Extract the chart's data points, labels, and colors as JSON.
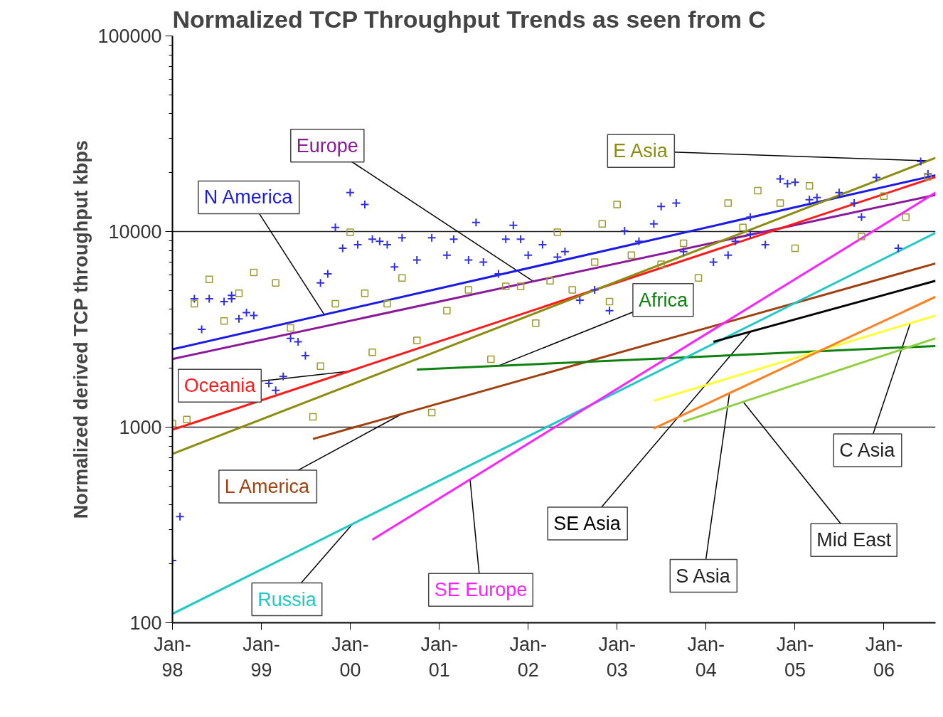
{
  "chart_data": {
    "type": "line",
    "title": "Normalized TCP Throughput Trends as seen from C",
    "ylabel": "Normalized derived TCP throughput kbps",
    "log": "y",
    "grid": "y",
    "xlim": [
      "1998-01",
      "2006-08"
    ],
    "ylim": [
      100,
      100000
    ],
    "xticks": [
      {
        "value": "1998-01",
        "label": "Jan-\n98"
      },
      {
        "value": "1999-01",
        "label": "Jan-\n99"
      },
      {
        "value": "2000-01",
        "label": "Jan-\n00"
      },
      {
        "value": "2001-01",
        "label": "Jan-\n01"
      },
      {
        "value": "2002-01",
        "label": "Jan-\n02"
      },
      {
        "value": "2003-01",
        "label": "Jan-\n03"
      },
      {
        "value": "2004-01",
        "label": "Jan-\n04"
      },
      {
        "value": "2005-01",
        "label": "Jan-\n05"
      },
      {
        "value": "2006-01",
        "label": "Jan-\n06"
      }
    ],
    "yticks": [
      100,
      1000,
      10000,
      100000
    ],
    "series": [
      {
        "name": "N America",
        "color": "#1a1ae6",
        "x": [
          "1998-01",
          "2006-08"
        ],
        "values": [
          2500,
          19400
        ]
      },
      {
        "name": "Europe",
        "color": "#8a1a9a",
        "x": [
          "1998-01",
          "2006-08"
        ],
        "values": [
          2230,
          15400
        ]
      },
      {
        "name": "Oceania",
        "color": "#ff1a1a",
        "x": [
          "1998-01",
          "2006-08"
        ],
        "values": [
          970,
          19000
        ]
      },
      {
        "name": "E Asia",
        "color": "#8c8c10",
        "x": [
          "1998-01",
          "2006-08"
        ],
        "values": [
          730,
          23800
        ]
      },
      {
        "name": "L America",
        "color": "#a04010",
        "x": [
          "1999-08",
          "2006-08"
        ],
        "values": [
          870,
          6870
        ]
      },
      {
        "name": "Africa",
        "color": "#108010",
        "x": [
          "2000-10",
          "2006-08"
        ],
        "values": [
          1970,
          2600
        ]
      },
      {
        "name": "Russia",
        "color": "#20c8c8",
        "x": [
          "1998-01",
          "2006-08"
        ],
        "values": [
          111,
          9840
        ]
      },
      {
        "name": "SE Europe",
        "color": "#ff20ff",
        "x": [
          "2000-04",
          "2006-08"
        ],
        "values": [
          266,
          15800
        ]
      },
      {
        "name": "SE Asia",
        "color": "#000000",
        "x": [
          "2004-02",
          "2006-08"
        ],
        "values": [
          2730,
          5600
        ]
      },
      {
        "name": "C Asia",
        "color": "#ffff30",
        "x": [
          "2003-06",
          "2006-08"
        ],
        "values": [
          1364,
          3720
        ]
      },
      {
        "name": "S Asia",
        "color": "#ff8020",
        "x": [
          "2003-06",
          "2006-08"
        ],
        "values": [
          984,
          4640
        ]
      },
      {
        "name": "Mid East",
        "color": "#90d040",
        "x": [
          "2003-10",
          "2006-08"
        ],
        "values": [
          1068,
          2845
        ]
      },
      {
        "type": "scatter",
        "marker": "cross",
        "color": "#3030e0",
        "x": [
          "1998-01",
          "1998-02",
          "1998-04",
          "1998-05",
          "1998-06",
          "1998-08",
          "1998-09",
          "1998-09",
          "1998-10",
          "1998-11",
          "1998-12",
          "1999-02",
          "1999-03",
          "1999-04",
          "1999-05",
          "1999-06",
          "1999-07",
          "1999-09",
          "1999-10",
          "1999-11",
          "1999-12",
          "2000-01",
          "2000-02",
          "2000-03",
          "2000-04",
          "2000-05",
          "2000-06",
          "2000-07",
          "2000-08",
          "2000-10",
          "2000-12",
          "2001-02",
          "2001-03",
          "2001-05",
          "2001-06",
          "2001-07",
          "2001-09",
          "2001-10",
          "2001-11",
          "2001-12",
          "2002-01",
          "2002-03",
          "2002-05",
          "2002-06",
          "2002-08",
          "2002-10",
          "2002-12",
          "2003-02",
          "2003-04",
          "2003-06",
          "2003-07",
          "2003-09",
          "2003-10",
          "2004-02",
          "2004-04",
          "2004-05",
          "2004-07",
          "2004-07",
          "2004-09",
          "2004-11",
          "2004-12",
          "2005-01",
          "2005-03",
          "2005-04",
          "2005-07",
          "2005-09",
          "2005-10",
          "2005-12",
          "2006-03",
          "2006-06",
          "2006-07"
        ],
        "values": [
          208,
          349,
          4530,
          3160,
          4530,
          4385,
          4530,
          4720,
          3575,
          3846,
          3724,
          1672,
          1542,
          1815,
          2844,
          2730,
          2318,
          5466,
          6078,
          10500,
          8220,
          15800,
          8570,
          13750,
          9140,
          8920,
          8570,
          6590,
          9290,
          7160,
          9290,
          7570,
          9140,
          7160,
          11120,
          6980,
          6078,
          9140,
          10760,
          9140,
          7570,
          8570,
          7390,
          7890,
          4456,
          5035,
          3943,
          10080,
          8920,
          10940,
          13430,
          13970,
          7890,
          6980,
          7570,
          8920,
          11860,
          9680,
          8570,
          18600,
          17570,
          17860,
          14560,
          14920,
          15800,
          13970,
          11860,
          18910,
          8220,
          22800,
          19700
        ]
      },
      {
        "type": "scatter",
        "marker": "square",
        "color": "#9a9a30",
        "x": [
          "1998-01",
          "1998-03",
          "1998-04",
          "1998-06",
          "1998-08",
          "1998-10",
          "1998-12",
          "1999-03",
          "1999-05",
          "1999-08",
          "1999-09",
          "1999-11",
          "2000-01",
          "2000-03",
          "2000-04",
          "2000-06",
          "2000-08",
          "2000-10",
          "2000-12",
          "2001-02",
          "2001-05",
          "2001-08",
          "2001-10",
          "2001-12",
          "2002-02",
          "2002-04",
          "2002-05",
          "2002-07",
          "2002-10",
          "2002-11",
          "2002-12",
          "2003-01",
          "2003-03",
          "2003-07",
          "2003-10",
          "2003-12",
          "2004-04",
          "2004-06",
          "2004-08",
          "2004-11",
          "2005-01",
          "2005-03",
          "2005-10",
          "2006-01",
          "2006-04",
          "2006-07"
        ],
        "values": [
          1042,
          1094,
          4276,
          5690,
          3488,
          4834,
          6180,
          5466,
          3215,
          1130,
          2052,
          4276,
          9910,
          4834,
          2415,
          4276,
          5785,
          2775,
          1187,
          3943,
          5035,
          2226,
          5250,
          5250,
          3404,
          5600,
          9910,
          5035,
          6980,
          10940,
          4385,
          13750,
          7570,
          6810,
          8710,
          5785,
          13970,
          10500,
          16190,
          13970,
          8220,
          17140,
          9440,
          15160,
          11860,
          19050
        ]
      }
    ]
  }
}
